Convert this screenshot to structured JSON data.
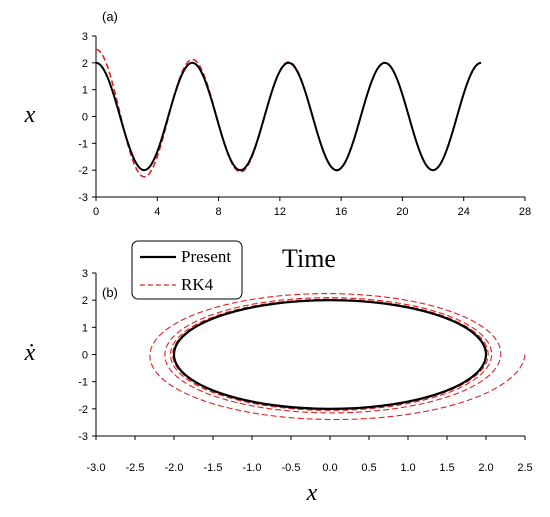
{
  "chart_data": [
    {
      "type": "line",
      "panel_label": "(a)",
      "xlabel": "Time",
      "ylabel": "x",
      "xlim": [
        0,
        28
      ],
      "ylim": [
        -3,
        3
      ],
      "xticks": [
        "0",
        "4",
        "8",
        "12",
        "16",
        "20",
        "24",
        "28"
      ],
      "yticks": [
        "3",
        "2",
        "1",
        "0",
        "-1",
        "-2",
        "-3"
      ],
      "series": [
        {
          "name": "Present",
          "color": "#000000",
          "style": "solid",
          "x": [
            0,
            1.57,
            3.14,
            4.71,
            6.28,
            7.85,
            9.42,
            11.0,
            12.57,
            14.14,
            15.71,
            17.28,
            18.85,
            20.42,
            21.99,
            23.56,
            25.13
          ],
          "y": [
            2.0,
            0.0,
            -2.0,
            0.0,
            2.0,
            0.0,
            -2.0,
            0.0,
            2.0,
            0.0,
            -2.0,
            0.0,
            2.0,
            0.0,
            -2.0,
            0.0,
            2.0
          ]
        },
        {
          "name": "RK4",
          "color": "#e02020",
          "style": "dashed",
          "x": [
            0,
            1.6,
            3.4,
            4.8,
            6.3,
            7.9,
            9.45,
            11.0,
            12.6,
            14.15,
            15.75,
            17.3,
            18.9,
            20.45,
            22.0,
            23.6,
            25.13
          ],
          "y": [
            2.5,
            0.1,
            -2.3,
            0.0,
            2.2,
            0.0,
            -2.15,
            0.0,
            2.1,
            0.0,
            -2.05,
            0.0,
            2.0,
            0.0,
            -2.0,
            0.0,
            2.0
          ]
        }
      ]
    },
    {
      "type": "line",
      "panel_label": "(b)",
      "xlabel": "x",
      "ylabel": "ẋ",
      "xlim": [
        -3.0,
        2.5
      ],
      "ylim": [
        -3,
        3
      ],
      "xticks": [
        "-3.0",
        "-2.5",
        "-2.0",
        "-1.5",
        "-1.0",
        "-0.5",
        "0.0",
        "0.5",
        "1.0",
        "1.5",
        "2.0",
        "2.5"
      ],
      "yticks": [
        "3",
        "2",
        "1",
        "0",
        "-1",
        "-2",
        "-3"
      ],
      "series": [
        {
          "name": "Present",
          "color": "#000000",
          "style": "solid",
          "shape": "closed orbit",
          "center": [
            0.0,
            0.0
          ],
          "radius_x": 2.0,
          "radius_y": 2.0
        },
        {
          "name": "RK4",
          "color": "#e02020",
          "style": "dashed",
          "shape": "spiral",
          "start": [
            2.5,
            0.0
          ],
          "end": [
            2.0,
            0.0
          ]
        }
      ],
      "legend": {
        "placement": "top-left",
        "entries": [
          {
            "name": "Present",
            "color": "#000000",
            "style": "solid"
          },
          {
            "name": "RK4",
            "color": "#e02020",
            "style": "dashed"
          }
        ]
      }
    }
  ]
}
